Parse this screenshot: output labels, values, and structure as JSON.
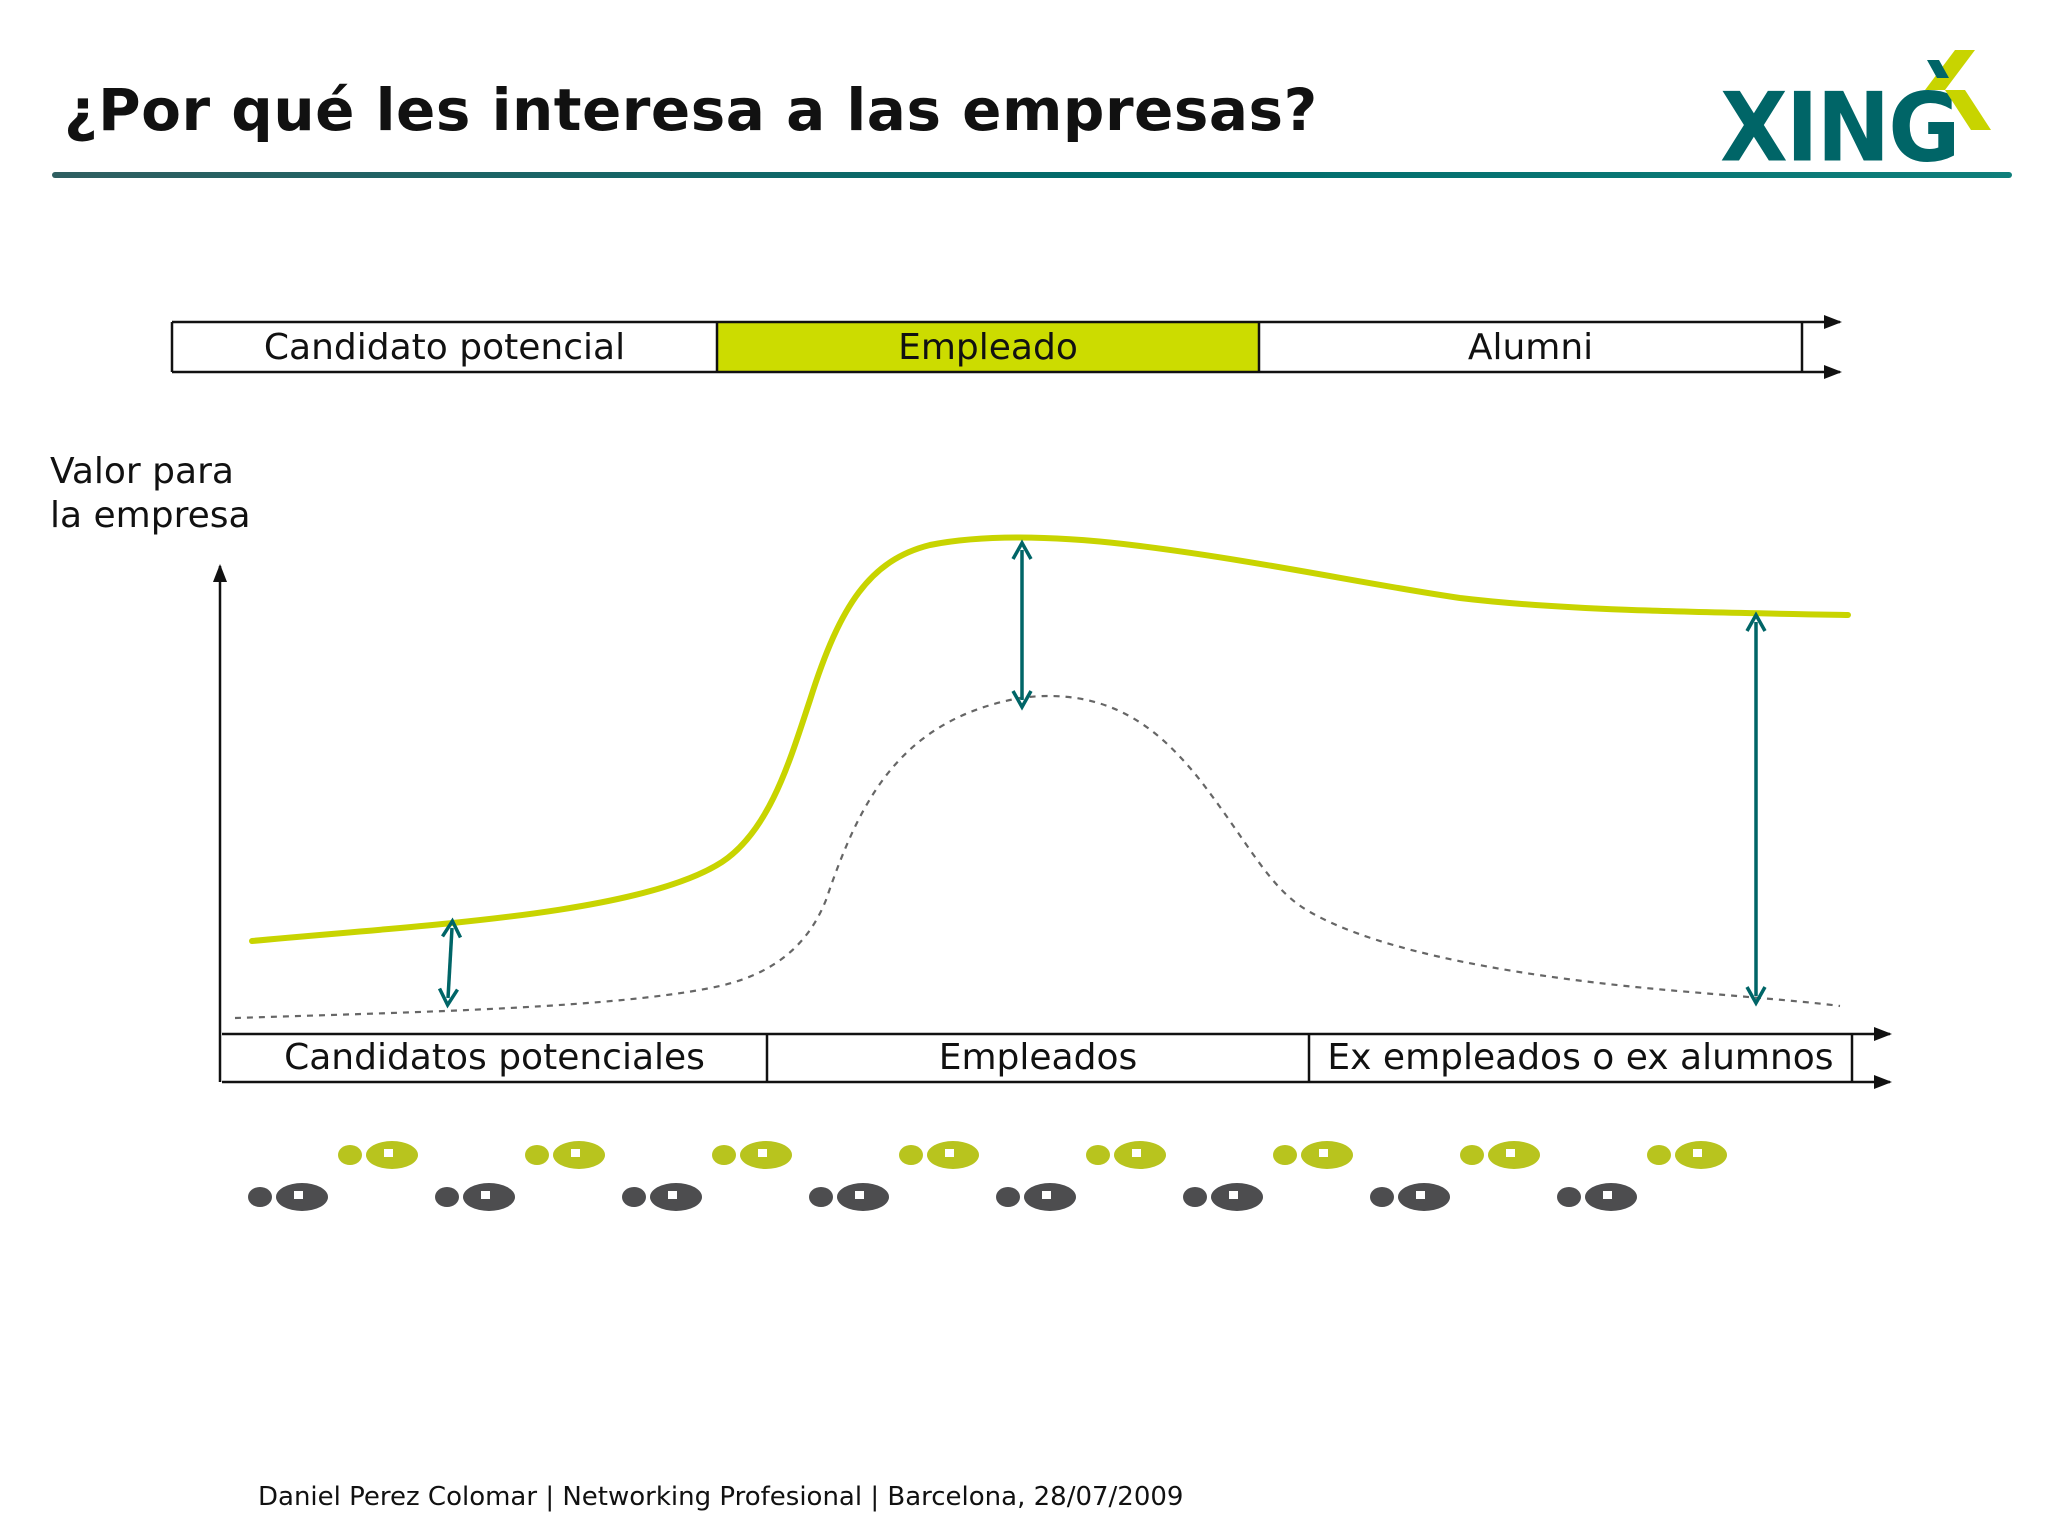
{
  "slide": {
    "title": "¿Por qué les interesa a las empresas?",
    "footer": "Daniel Perez Colomar | Networking Profesional | Barcelona, 28/07/2009"
  },
  "logo": {
    "word": "XING",
    "icon": "xing-x-mark-icon",
    "color": "#006567",
    "accent": "#c8d400"
  },
  "top_bar": {
    "segments": [
      {
        "label": "Candidato potencial",
        "highlighted": false
      },
      {
        "label": "Empleado",
        "highlighted": true
      },
      {
        "label": "Alumni",
        "highlighted": false
      }
    ],
    "highlight_color": "#ccdc00"
  },
  "diagram": {
    "y_axis_label_line1": "Valor para",
    "y_axis_label_line2": "la empresa",
    "x_segments": [
      {
        "label": "Candidatos potenciales"
      },
      {
        "label": "Empleados"
      },
      {
        "label": "Ex empleados o ex alumnos"
      }
    ],
    "curve_colors": {
      "with_network": "#c8d400",
      "without_network": "#666666",
      "gap_arrows": "#006567"
    }
  },
  "footprints": {
    "count": 8,
    "colors": [
      "#b8c41e",
      "#4d4d4f"
    ]
  }
}
